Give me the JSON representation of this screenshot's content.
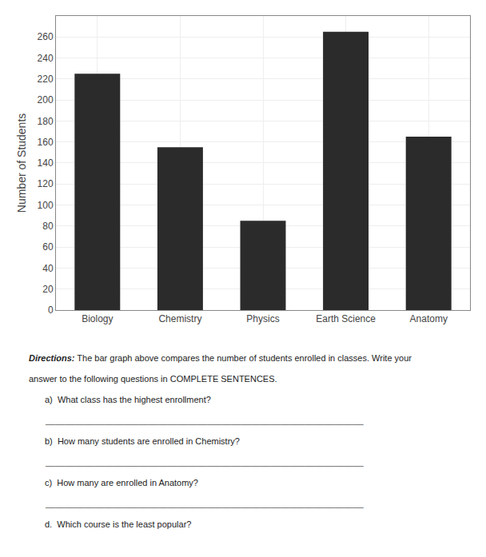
{
  "chart_data": {
    "type": "bar",
    "categories": [
      "Biology",
      "Chemistry",
      "Physics",
      "Earth Science",
      "Anatomy"
    ],
    "values": [
      225,
      155,
      85,
      265,
      165
    ],
    "color": "#2b2b2b",
    "ylabel": "Number of Students",
    "ylim": [
      0,
      280
    ],
    "yticks": [
      0,
      20,
      40,
      60,
      80,
      100,
      120,
      140,
      160,
      180,
      200,
      220,
      240,
      260
    ],
    "grid": true,
    "annotations": [
      "Directions:",
      "The bar graph above compares the number of students enrolled in classes. Write your",
      "answer to the following questions in COMPLETE SENTENCES.",
      "a)  What class has the highest enrollment?",
      "_________________________________________________________________",
      "b)  How many students are enrolled in Chemistry?",
      "_________________________________________________________________",
      "c)  How many are enrolled in Anatomy?",
      "_________________________________________________________________",
      "d.  Which course is the least popular?"
    ]
  }
}
